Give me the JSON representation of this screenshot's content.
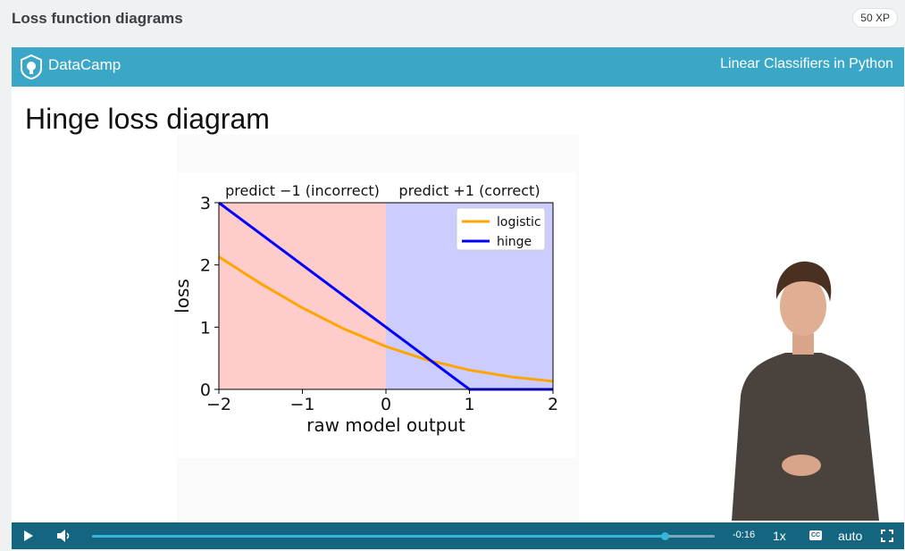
{
  "header": {
    "title": "Loss function diagrams",
    "xp": "50 XP"
  },
  "video": {
    "brand": "DataCamp",
    "course": "Linear Classifiers in Python",
    "slide_title": "Hinge loss diagram",
    "accent_color": "#3ba7c8",
    "controls_color": "#146580"
  },
  "controls": {
    "time_remaining": "-0:16",
    "speed": "1x",
    "captions": "CC",
    "quality": "auto",
    "progress": 0.92
  },
  "chart_data": {
    "type": "line",
    "xlabel": "raw model output",
    "ylabel": "loss",
    "xlim": [
      -2,
      2
    ],
    "ylim": [
      0,
      3
    ],
    "x_ticks": [
      "−2",
      "−1",
      "0",
      "1",
      "2"
    ],
    "y_ticks": [
      "0",
      "1",
      "2",
      "3"
    ],
    "region_labels": [
      "predict −1 (incorrect)",
      "predict +1 (correct)"
    ],
    "region_colors": [
      "#ffcccc",
      "#ccccff"
    ],
    "legend_position": "upper right",
    "series": [
      {
        "name": "logistic",
        "color": "#ffa500",
        "x": [
          -2,
          -1.5,
          -1,
          -0.5,
          0,
          0.5,
          1,
          1.5,
          2
        ],
        "y": [
          2.13,
          1.7,
          1.31,
          0.97,
          0.69,
          0.47,
          0.31,
          0.2,
          0.13
        ]
      },
      {
        "name": "hinge",
        "color": "#0000ff",
        "x": [
          -2,
          1,
          2
        ],
        "y": [
          3,
          0,
          0
        ]
      }
    ]
  }
}
